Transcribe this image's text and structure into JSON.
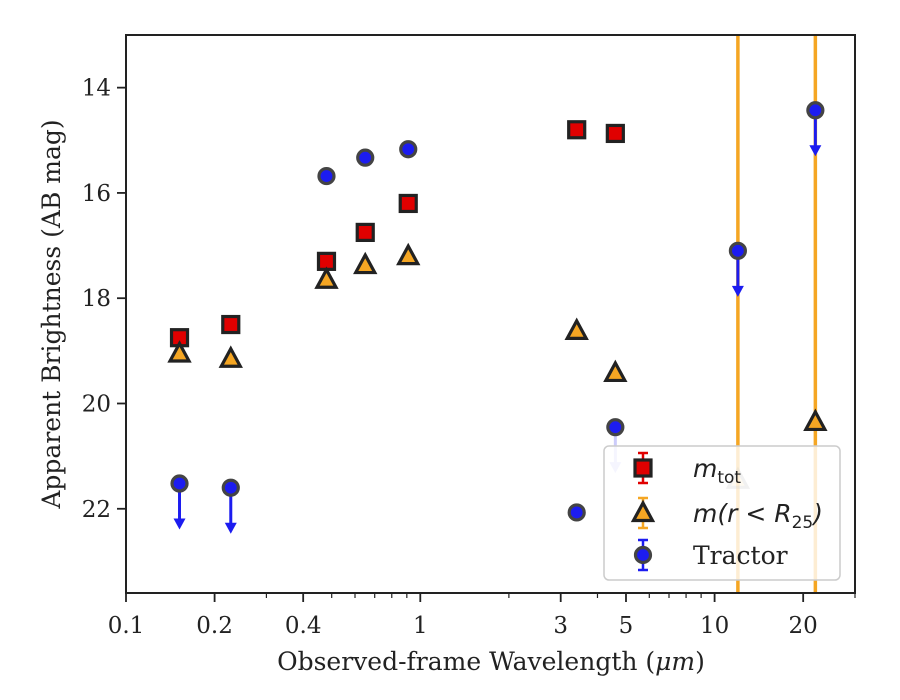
{
  "chart_data": {
    "type": "scatter",
    "xscale": "log",
    "xlim": [
      0.1,
      30
    ],
    "ylim": [
      13,
      23.6
    ],
    "y_inverted": true,
    "xlabel_text": "Observed-frame Wavelength (",
    "xlabel_unit": "μm",
    "xlabel_tail": ")",
    "ylabel": "Apparent Brightness (AB mag)",
    "x_ticks": [
      {
        "value": 0.1,
        "label": "0.1"
      },
      {
        "value": 0.2,
        "label": "0.2"
      },
      {
        "value": 0.4,
        "label": "0.4"
      },
      {
        "value": 1,
        "label": "1"
      },
      {
        "value": 3,
        "label": "3"
      },
      {
        "value": 5,
        "label": "5"
      },
      {
        "value": 10,
        "label": "10"
      },
      {
        "value": 20,
        "label": "20"
      }
    ],
    "x_minor_ticks": [
      0.3,
      0.5,
      0.6,
      0.7,
      0.8,
      0.9,
      2,
      4,
      6,
      7,
      8,
      9,
      30
    ],
    "y_ticks": [
      {
        "value": 14,
        "label": "14"
      },
      {
        "value": 16,
        "label": "16"
      },
      {
        "value": 18,
        "label": "18"
      },
      {
        "value": 20,
        "label": "20"
      },
      {
        "value": 22,
        "label": "22"
      }
    ],
    "vertical_lines": [
      {
        "x": 12.0,
        "color": "#f5a623"
      },
      {
        "x": 22.0,
        "color": "#f5a623"
      }
    ],
    "series": [
      {
        "name": "m_tot",
        "marker": "square",
        "color": "#e00000",
        "points": [
          {
            "x": 0.152,
            "y": 18.75
          },
          {
            "x": 0.227,
            "y": 18.5
          },
          {
            "x": 0.48,
            "y": 17.3
          },
          {
            "x": 0.65,
            "y": 16.75
          },
          {
            "x": 0.91,
            "y": 16.2
          },
          {
            "x": 3.4,
            "y": 14.8
          },
          {
            "x": 4.6,
            "y": 14.87
          }
        ]
      },
      {
        "name": "m(r<R25)",
        "marker": "triangle",
        "color": "#f5a623",
        "points": [
          {
            "x": 0.152,
            "y": 19.05
          },
          {
            "x": 0.227,
            "y": 19.15
          },
          {
            "x": 0.48,
            "y": 17.65
          },
          {
            "x": 0.65,
            "y": 17.37
          },
          {
            "x": 0.91,
            "y": 17.2
          },
          {
            "x": 3.4,
            "y": 18.62
          },
          {
            "x": 4.6,
            "y": 19.42
          },
          {
            "x": 12.0,
            "y": 21.45,
            "faded": true
          },
          {
            "x": 22.0,
            "y": 20.35
          }
        ]
      },
      {
        "name": "Tractor",
        "marker": "circle",
        "color": "#1c1cf0",
        "points": [
          {
            "x": 0.152,
            "y": 21.52,
            "upper_limit": true
          },
          {
            "x": 0.227,
            "y": 21.6,
            "upper_limit": true
          },
          {
            "x": 0.48,
            "y": 15.68
          },
          {
            "x": 0.65,
            "y": 15.33
          },
          {
            "x": 0.91,
            "y": 15.17
          },
          {
            "x": 3.4,
            "y": 22.07
          },
          {
            "x": 4.6,
            "y": 20.45,
            "upper_limit": true,
            "faded_arrow": true
          },
          {
            "x": 12.0,
            "y": 17.1,
            "upper_limit": true
          },
          {
            "x": 22.0,
            "y": 14.43,
            "upper_limit": true
          }
        ]
      }
    ],
    "legend": {
      "placement": "lower-right",
      "entries": [
        {
          "series": "m_tot",
          "main": "m",
          "sub": "tot",
          "pre": "",
          "post": ""
        },
        {
          "series": "m(r<R25)",
          "main": "m(r < R",
          "sub": "25",
          "pre": "",
          "post": ")"
        },
        {
          "series": "Tractor",
          "main": "Tractor",
          "sub": "",
          "pre": "",
          "post": ""
        }
      ]
    }
  }
}
